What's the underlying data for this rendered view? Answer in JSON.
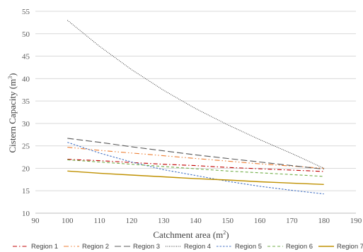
{
  "chart_data": {
    "type": "line",
    "title": "",
    "xlabel": "Catchment area (m",
    "xlabel_sup": "2",
    "xlabel_suffix": ")",
    "ylabel": "Cistern Capacity (m",
    "ylabel_sup": "3",
    "ylabel_suffix": ")",
    "xlim": [
      90,
      190
    ],
    "ylim": [
      10,
      55
    ],
    "xticks": [
      90,
      100,
      110,
      120,
      130,
      140,
      150,
      160,
      170,
      180,
      190
    ],
    "yticks": [
      10,
      15,
      20,
      25,
      30,
      35,
      40,
      45,
      50,
      55
    ],
    "grid": "horizontal",
    "legend_position": "bottom",
    "x": [
      100,
      110,
      120,
      130,
      140,
      150,
      160,
      170,
      180
    ],
    "series": [
      {
        "name": "Region 1",
        "color": "#c00000",
        "dash": "6,3,1.5,3",
        "width": 1.1,
        "values": [
          22.0,
          21.7,
          21.3,
          20.9,
          20.6,
          20.2,
          19.9,
          19.6,
          19.3
        ]
      },
      {
        "name": "Region 2",
        "color": "#ed7d31",
        "dash": "7,3,1.5,3,1.5,3",
        "width": 1.1,
        "values": [
          24.7,
          24.0,
          23.4,
          22.8,
          22.2,
          21.6,
          21.0,
          20.5,
          20.0
        ]
      },
      {
        "name": "Region 3",
        "color": "#595959",
        "dash": "9,4",
        "width": 1.1,
        "values": [
          26.7,
          25.8,
          24.8,
          23.9,
          23.0,
          22.2,
          21.4,
          20.6,
          19.8
        ]
      },
      {
        "name": "Region 4",
        "color": "#3a3a3a",
        "dash": "1,1.5",
        "width": 1.0,
        "values": [
          53.0,
          47.2,
          42.0,
          37.4,
          33.3,
          29.7,
          26.4,
          23.3,
          20.0
        ]
      },
      {
        "name": "Region 5",
        "color": "#4472c4",
        "dash": "2.5,2",
        "width": 1.1,
        "values": [
          25.8,
          23.4,
          21.4,
          19.7,
          18.4,
          17.1,
          16.0,
          15.1,
          14.3
        ]
      },
      {
        "name": "Region 6",
        "color": "#70ad47",
        "dash": "4,3",
        "width": 1.1,
        "values": [
          21.9,
          21.4,
          20.9,
          20.4,
          19.9,
          19.4,
          19.0,
          18.6,
          18.2
        ]
      },
      {
        "name": "Region 7",
        "color": "#bf9000",
        "dash": "",
        "width": 1.4,
        "values": [
          19.4,
          18.9,
          18.5,
          18.1,
          17.7,
          17.4,
          17.0,
          16.7,
          16.4
        ]
      }
    ]
  }
}
